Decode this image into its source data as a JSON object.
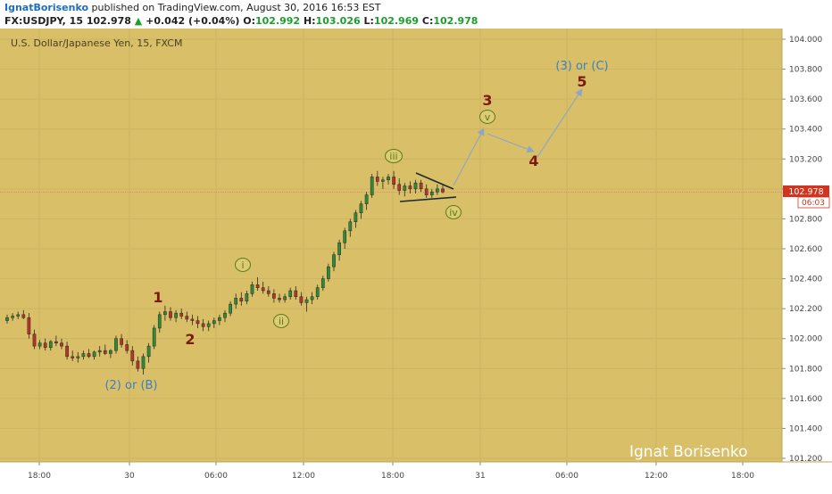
{
  "header": {
    "author": "IgnatBorisenko",
    "published_text": "published on TradingView.com, August 30, 2016 16:53 EST",
    "symbol": "FX:USDJPY, 15",
    "last": "102.978",
    "arrow": "▲",
    "change": "+0.042 (+0.04%)",
    "o_label": "O:",
    "o_value": "102.992",
    "h_label": "H:",
    "h_value": "103.026",
    "l_label": "L:",
    "l_value": "102.969",
    "c_label": "C:",
    "c_value": "102.978"
  },
  "chart_title": "U.S. Dollar/Japanese Yen, 15, FXCM",
  "watermark": "Ignat Borisenko",
  "price_tag": "102.978",
  "countdown_tag": "06:03",
  "colors": {
    "background": "#d8bf68",
    "up": "#2e8b3a",
    "down": "#b8332a",
    "wave_major": "#7a1a10",
    "wave_minor": "#5b7a1e",
    "wave_degree": "#3d7fc0",
    "projection": "#8fa7c4",
    "trendline": "#1d2b33",
    "price_line": "#e08a70"
  },
  "chart_data": {
    "type": "candlestick",
    "title": "U.S. Dollar/Japanese Yen, 15, FXCM",
    "timeframe": "15",
    "ylim": [
      101.1,
      104.05
    ],
    "y_ticks": [
      "104.000",
      "103.800",
      "103.600",
      "103.400",
      "103.200",
      "103.000",
      "102.800",
      "102.600",
      "102.400",
      "102.200",
      "102.000",
      "101.800",
      "101.600",
      "101.400",
      "101.200"
    ],
    "x_ticks": [
      "18:00",
      "30",
      "06:00",
      "12:00",
      "18:00",
      "31",
      "06:00",
      "12:00",
      "18:00"
    ],
    "current_price": 102.978,
    "candles": [
      [
        102.12,
        102.16,
        102.1,
        102.14
      ],
      [
        102.14,
        102.17,
        102.12,
        102.15
      ],
      [
        102.15,
        102.18,
        102.13,
        102.16
      ],
      [
        102.16,
        102.19,
        102.13,
        102.14
      ],
      [
        102.14,
        102.17,
        102.0,
        102.03
      ],
      [
        102.03,
        102.06,
        101.93,
        101.95
      ],
      [
        101.95,
        101.99,
        101.93,
        101.97
      ],
      [
        101.97,
        102.0,
        101.92,
        101.94
      ],
      [
        101.94,
        101.99,
        101.92,
        101.98
      ],
      [
        101.98,
        102.02,
        101.95,
        101.97
      ],
      [
        101.97,
        102.0,
        101.93,
        101.95
      ],
      [
        101.95,
        101.98,
        101.86,
        101.88
      ],
      [
        101.88,
        101.92,
        101.85,
        101.87
      ],
      [
        101.87,
        101.91,
        101.84,
        101.88
      ],
      [
        101.88,
        101.92,
        101.86,
        101.9
      ],
      [
        101.9,
        101.93,
        101.87,
        101.88
      ],
      [
        101.88,
        101.92,
        101.86,
        101.91
      ],
      [
        101.91,
        101.95,
        101.88,
        101.92
      ],
      [
        101.92,
        101.96,
        101.89,
        101.9
      ],
      [
        101.9,
        101.93,
        101.87,
        101.92
      ],
      [
        101.92,
        102.02,
        101.9,
        102.0
      ],
      [
        102.0,
        102.03,
        101.94,
        101.96
      ],
      [
        101.96,
        101.99,
        101.9,
        101.92
      ],
      [
        101.92,
        101.95,
        101.82,
        101.85
      ],
      [
        101.85,
        101.88,
        101.78,
        101.8
      ],
      [
        101.8,
        101.9,
        101.76,
        101.88
      ],
      [
        101.88,
        101.97,
        101.84,
        101.95
      ],
      [
        101.95,
        102.09,
        101.93,
        102.07
      ],
      [
        102.07,
        102.18,
        102.04,
        102.16
      ],
      [
        102.16,
        102.22,
        102.12,
        102.18
      ],
      [
        102.18,
        102.21,
        102.12,
        102.14
      ],
      [
        102.14,
        102.19,
        102.11,
        102.17
      ],
      [
        102.17,
        102.2,
        102.13,
        102.15
      ],
      [
        102.15,
        102.18,
        102.11,
        102.13
      ],
      [
        102.13,
        102.16,
        102.09,
        102.12
      ],
      [
        102.12,
        102.15,
        102.07,
        102.1
      ],
      [
        102.1,
        102.13,
        102.05,
        102.08
      ],
      [
        102.08,
        102.12,
        102.05,
        102.1
      ],
      [
        102.1,
        102.14,
        102.07,
        102.12
      ],
      [
        102.12,
        102.16,
        102.09,
        102.14
      ],
      [
        102.14,
        102.19,
        102.11,
        102.17
      ],
      [
        102.17,
        102.25,
        102.15,
        102.23
      ],
      [
        102.23,
        102.3,
        102.2,
        102.27
      ],
      [
        102.27,
        102.31,
        102.22,
        102.25
      ],
      [
        102.25,
        102.32,
        102.23,
        102.3
      ],
      [
        102.3,
        102.38,
        102.28,
        102.36
      ],
      [
        102.36,
        102.41,
        102.32,
        102.34
      ],
      [
        102.34,
        102.38,
        102.3,
        102.32
      ],
      [
        102.32,
        102.35,
        102.28,
        102.3
      ],
      [
        102.3,
        102.33,
        102.24,
        102.27
      ],
      [
        102.27,
        102.3,
        102.24,
        102.26
      ],
      [
        102.26,
        102.3,
        102.24,
        102.28
      ],
      [
        102.28,
        102.34,
        102.26,
        102.32
      ],
      [
        102.32,
        102.35,
        102.26,
        102.28
      ],
      [
        102.28,
        102.31,
        102.22,
        102.24
      ],
      [
        102.24,
        102.28,
        102.18,
        102.26
      ],
      [
        102.26,
        102.31,
        102.23,
        102.28
      ],
      [
        102.28,
        102.36,
        102.26,
        102.34
      ],
      [
        102.34,
        102.42,
        102.32,
        102.4
      ],
      [
        102.4,
        102.5,
        102.38,
        102.48
      ],
      [
        102.48,
        102.58,
        102.45,
        102.56
      ],
      [
        102.56,
        102.66,
        102.52,
        102.64
      ],
      [
        102.64,
        102.74,
        102.6,
        102.72
      ],
      [
        102.72,
        102.8,
        102.68,
        102.78
      ],
      [
        102.78,
        102.86,
        102.74,
        102.84
      ],
      [
        102.84,
        102.92,
        102.8,
        102.9
      ],
      [
        102.9,
        102.98,
        102.86,
        102.96
      ],
      [
        102.96,
        103.1,
        102.94,
        103.08
      ],
      [
        103.08,
        103.12,
        103.02,
        103.05
      ],
      [
        103.05,
        103.08,
        103.0,
        103.06
      ],
      [
        103.06,
        103.1,
        103.03,
        103.08
      ],
      [
        103.08,
        103.12,
        103.0,
        103.03
      ],
      [
        103.03,
        103.07,
        102.96,
        102.99
      ],
      [
        102.99,
        103.04,
        102.95,
        103.02
      ],
      [
        103.02,
        103.05,
        102.97,
        103.0
      ],
      [
        103.0,
        103.06,
        102.97,
        103.04
      ],
      [
        103.04,
        103.06,
        102.98,
        103.0
      ],
      [
        103.0,
        103.03,
        102.94,
        102.96
      ],
      [
        102.96,
        103.0,
        102.94,
        102.98
      ],
      [
        102.98,
        103.03,
        102.96,
        103.0
      ],
      [
        103.0,
        103.03,
        102.97,
        102.98
      ]
    ],
    "annotations": [
      {
        "label": "(2) or (B)",
        "style": "degree"
      },
      {
        "label": "1",
        "style": "major"
      },
      {
        "label": "2",
        "style": "major"
      },
      {
        "label": "i",
        "style": "minor"
      },
      {
        "label": "ii",
        "style": "minor"
      },
      {
        "label": "iii",
        "style": "minor"
      },
      {
        "label": "iv",
        "style": "minor"
      },
      {
        "label": "3",
        "style": "major"
      },
      {
        "label": "v",
        "style": "minor"
      },
      {
        "label": "4",
        "style": "major"
      },
      {
        "label": "5",
        "style": "major"
      },
      {
        "label": "(3) or (C)",
        "style": "degree"
      }
    ],
    "projection_path": [
      [
        103.0
      ],
      [
        103.4
      ],
      [
        103.25
      ],
      [
        103.68
      ]
    ]
  }
}
